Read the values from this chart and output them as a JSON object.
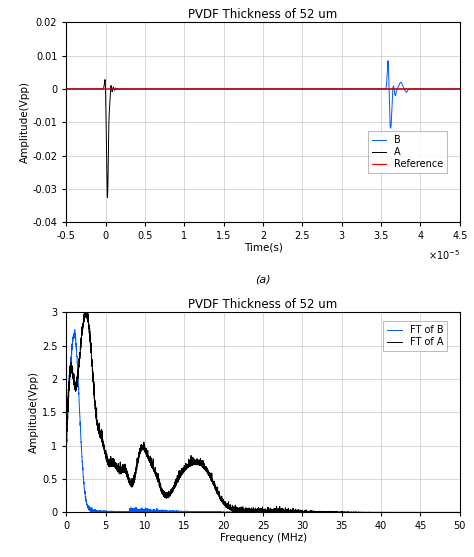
{
  "title": "PVDF Thickness of 52 um",
  "subplot_a_label": "(a)",
  "subplot_a": {
    "xlabel": "Time(s)",
    "ylabel": "Amplitude(Vpp)",
    "xlim": [
      -5e-06,
      4.5e-05
    ],
    "ylim": [
      -0.04,
      0.02
    ],
    "yticks": [
      0.02,
      0.01,
      0,
      -0.01,
      -0.02,
      -0.03,
      -0.04
    ],
    "yticklabels": [
      "0.02",
      "0.01",
      "0",
      "-0.01",
      "-0.02",
      "-0.03",
      "-0.04"
    ],
    "xticks": [
      -5e-06,
      0,
      5e-06,
      1e-05,
      1.5e-05,
      2e-05,
      2.5e-05,
      3e-05,
      3.5e-05,
      4e-05,
      4.5e-05
    ],
    "xticklabels": [
      "-0.5",
      "0",
      "0.5",
      "1",
      "1.5",
      "2",
      "2.5",
      "3",
      "3.5",
      "4",
      "4.5"
    ],
    "legend": [
      "B",
      "A",
      "Reference"
    ],
    "legend_colors": [
      "#0000ff",
      "#000000",
      "#ff0000"
    ]
  },
  "subplot_b": {
    "xlabel": "Frequency (MHz)",
    "ylabel": "Amplitude(Vpp)",
    "xlim": [
      0,
      50
    ],
    "ylim": [
      0,
      3
    ],
    "yticks": [
      0,
      0.5,
      1.0,
      1.5,
      2.0,
      2.5,
      3.0
    ],
    "yticklabels": [
      "0",
      "0.5",
      "1",
      "1.5",
      "2",
      "2.5",
      "3"
    ],
    "xticks": [
      0,
      5,
      10,
      15,
      20,
      25,
      30,
      35,
      40,
      45,
      50
    ],
    "xticklabels": [
      "0",
      "5",
      "10",
      "15",
      "20",
      "25",
      "30",
      "35",
      "40",
      "45",
      "50"
    ],
    "legend": [
      "FT of B",
      "FT of A"
    ],
    "legend_colors": [
      "#0000ff",
      "#000000"
    ]
  },
  "background_color": "#ffffff",
  "grid_color": "#c8c8c8",
  "color_A": "#000000",
  "color_B": "#0055ff",
  "color_ref": "#ff0000"
}
